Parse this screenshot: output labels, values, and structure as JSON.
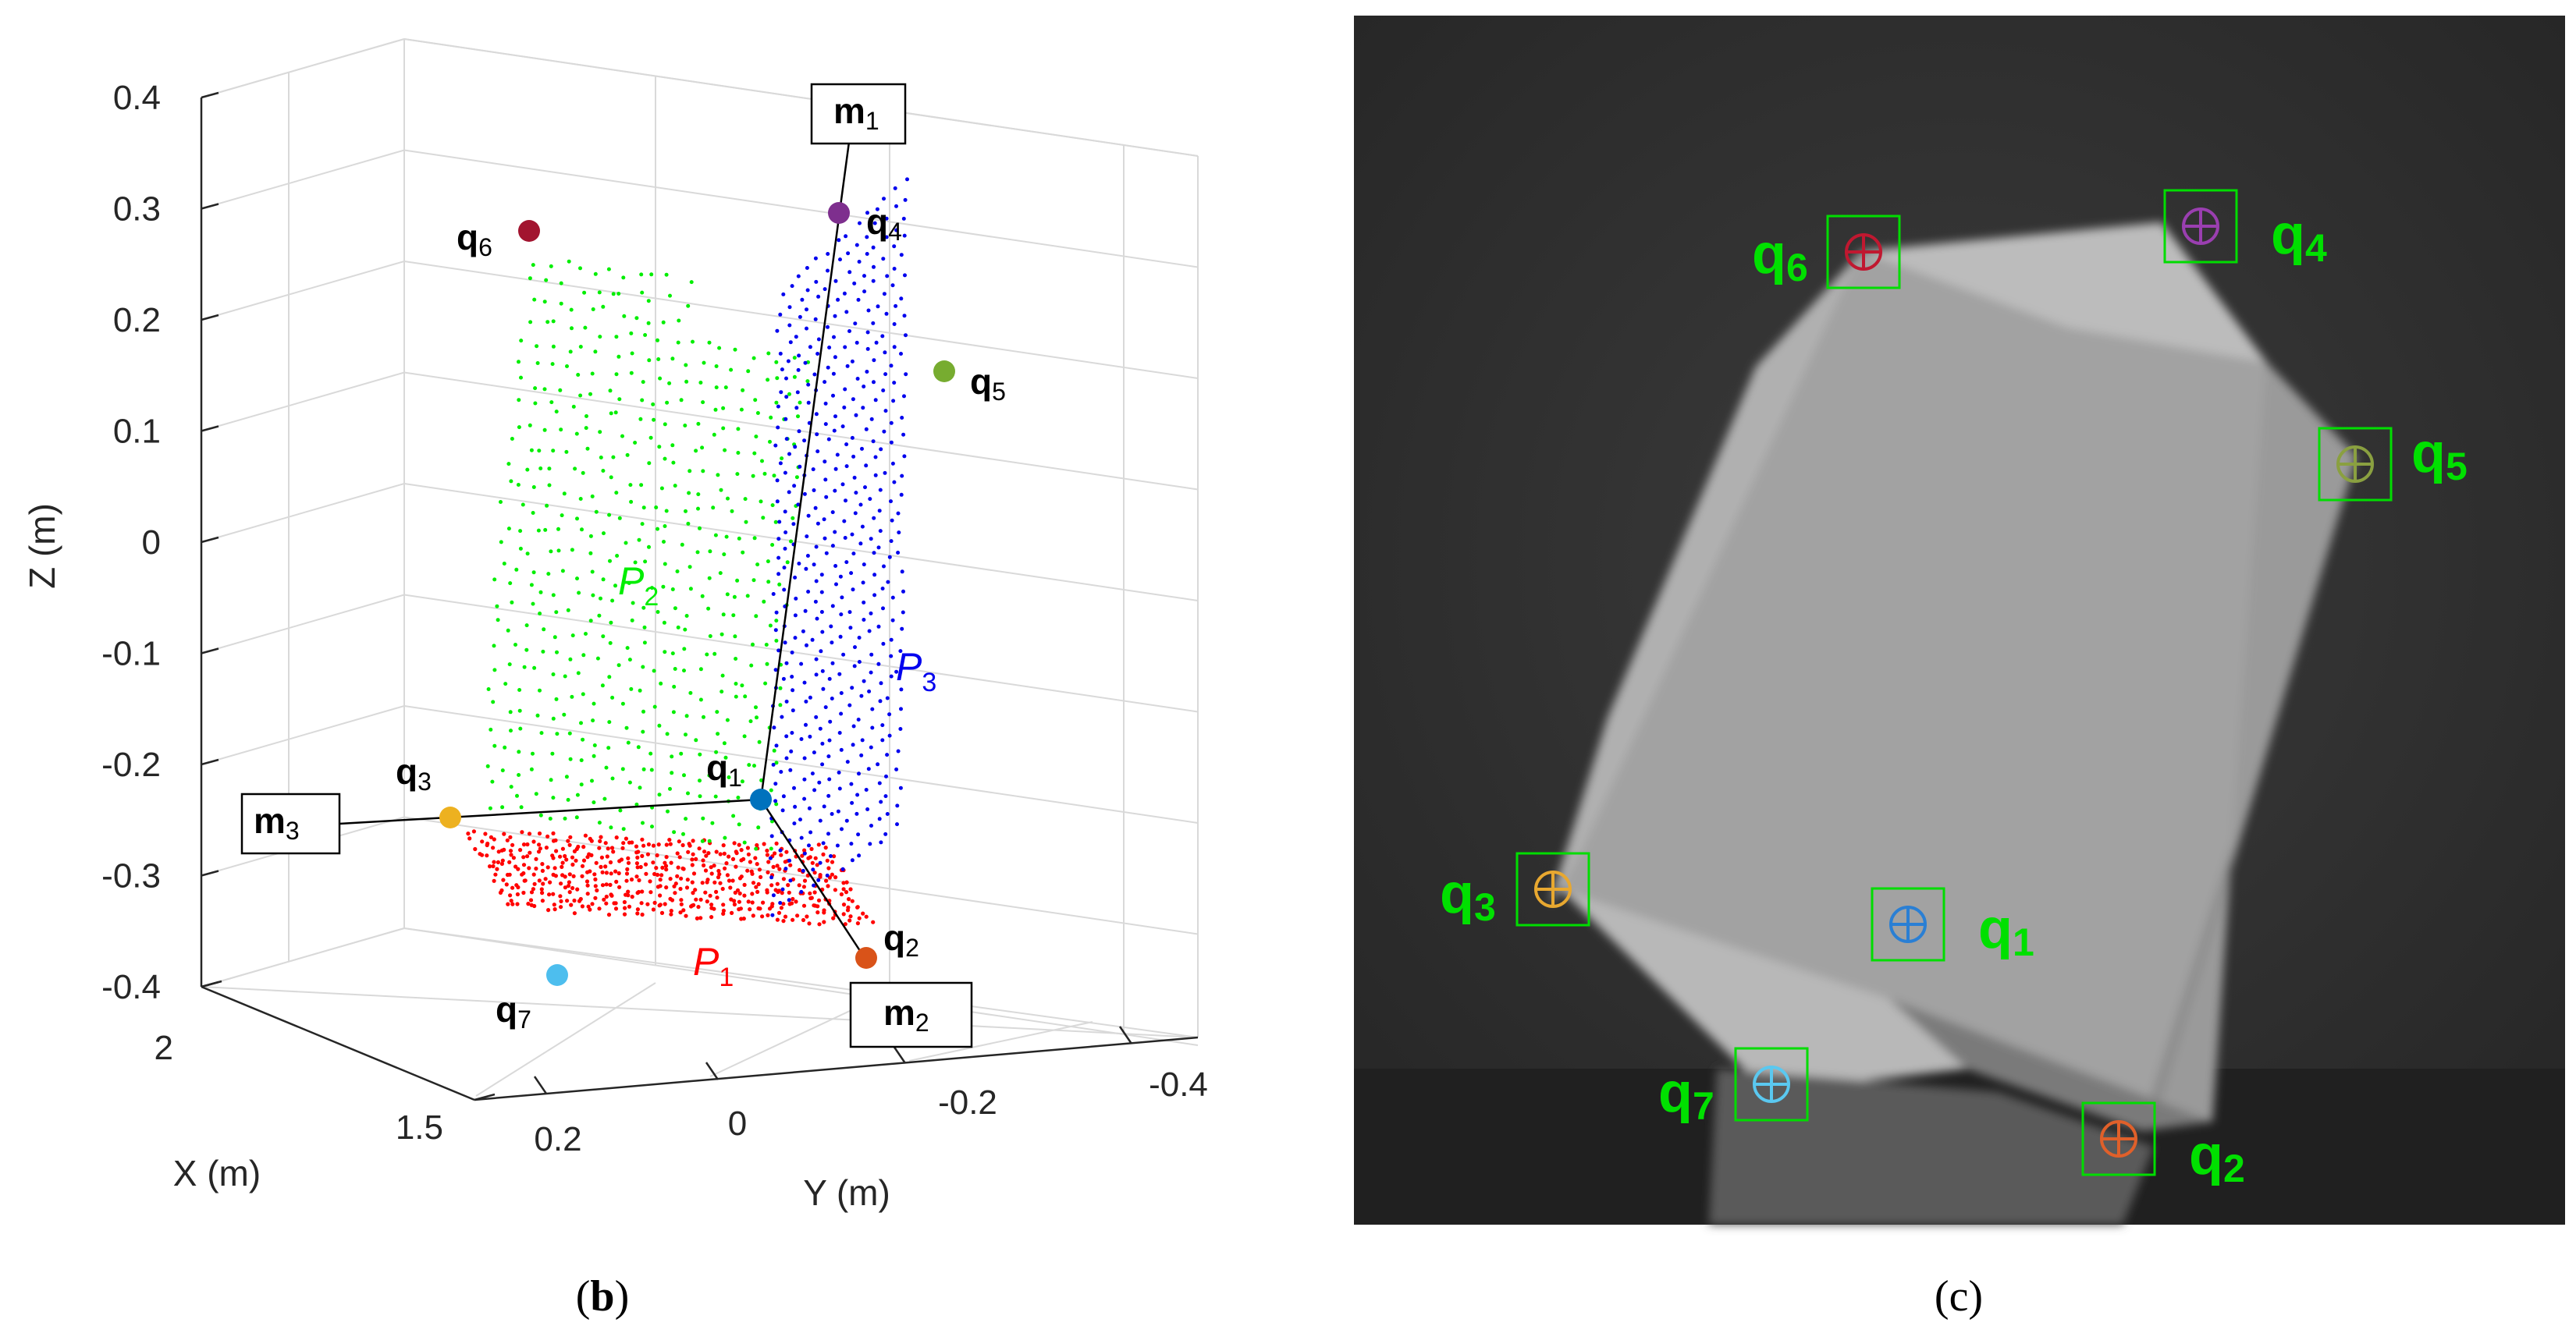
{
  "panels": [
    {
      "id": "b",
      "caption_open": "(",
      "caption_letter": "b",
      "caption_close": ")"
    },
    {
      "id": "c",
      "caption_open": "(",
      "caption_letter": "c",
      "caption_close": ")"
    }
  ],
  "chart_data": [
    {
      "type": "scatter",
      "projection": "3d",
      "panel": "b",
      "xlabel": "X (m)",
      "ylabel": "Y (m)",
      "zlabel": "Z (m)",
      "x_ticks": [
        "1.5",
        "2"
      ],
      "y_ticks": [
        "0.2",
        "0",
        "-0.2",
        "-0.4"
      ],
      "z_ticks": [
        "0.4",
        "0.3",
        "0.2",
        "0.1",
        "0",
        "-0.1",
        "-0.2",
        "-0.3",
        "-0.4"
      ],
      "zlim": [
        -0.4,
        0.4
      ],
      "grid": true,
      "series": [
        {
          "name": "P1",
          "label": "P",
          "sub": "1",
          "color": "#ff0000"
        },
        {
          "name": "P2",
          "label": "P",
          "sub": "2",
          "color": "#00ee00"
        },
        {
          "name": "P3",
          "label": "P",
          "sub": "3",
          "color": "#0000ee"
        }
      ],
      "points": [
        {
          "name": "q1",
          "label": "q",
          "sub": "1",
          "color": "#0072bd"
        },
        {
          "name": "q2",
          "label": "q",
          "sub": "2",
          "color": "#d95319"
        },
        {
          "name": "q3",
          "label": "q",
          "sub": "3",
          "color": "#edb120"
        },
        {
          "name": "q4",
          "label": "q",
          "sub": "4",
          "color": "#7e2f8e"
        },
        {
          "name": "q5",
          "label": "q",
          "sub": "5",
          "color": "#77ac30"
        },
        {
          "name": "q6",
          "label": "q",
          "sub": "6",
          "color": "#a2142f"
        },
        {
          "name": "q7",
          "label": "q",
          "sub": "7",
          "color": "#4dbeee"
        }
      ],
      "vectors": [
        {
          "name": "m1",
          "label": "m",
          "sub": "1"
        },
        {
          "name": "m2",
          "label": "m",
          "sub": "2"
        },
        {
          "name": "m3",
          "label": "m",
          "sub": "3"
        }
      ]
    }
  ],
  "camera_image": {
    "panel": "c",
    "box_color": "#00dd00",
    "markers": [
      {
        "name": "q1",
        "label": "q",
        "sub": "1",
        "color": "#2a7fd4"
      },
      {
        "name": "q2",
        "label": "q",
        "sub": "2",
        "color": "#e0602a"
      },
      {
        "name": "q3",
        "label": "q",
        "sub": "3",
        "color": "#e8a830"
      },
      {
        "name": "q4",
        "label": "q",
        "sub": "4",
        "color": "#9a3fb0"
      },
      {
        "name": "q5",
        "label": "q",
        "sub": "5",
        "color": "#8aa040"
      },
      {
        "name": "q6",
        "label": "q",
        "sub": "6",
        "color": "#c01830"
      },
      {
        "name": "q7",
        "label": "q",
        "sub": "7",
        "color": "#5ac8f0"
      }
    ]
  }
}
